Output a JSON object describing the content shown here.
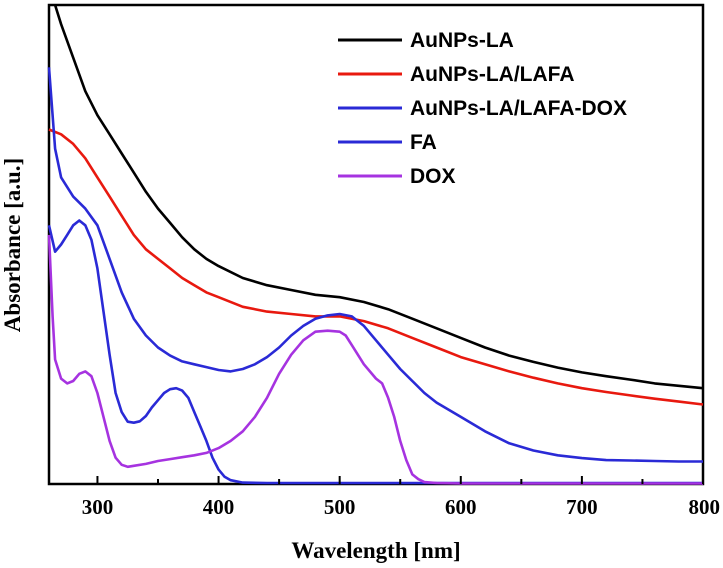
{
  "chart_data": {
    "type": "line",
    "title": "",
    "xlabel": "Wavelength [nm]",
    "ylabel": "Absorbance [a.u.]",
    "xlim": [
      260,
      800
    ],
    "ylim": [
      0,
      1
    ],
    "x_ticks": [
      300,
      400,
      500,
      600,
      700,
      800
    ],
    "y_ticks": [],
    "grid": false,
    "legend_position": "top-right",
    "series": [
      {
        "name": "AuNPs-LA",
        "color": "#000000",
        "points": [
          [
            265,
            1.0
          ],
          [
            270,
            0.96
          ],
          [
            280,
            0.89
          ],
          [
            290,
            0.82
          ],
          [
            300,
            0.77
          ],
          [
            310,
            0.73
          ],
          [
            320,
            0.69
          ],
          [
            330,
            0.65
          ],
          [
            340,
            0.61
          ],
          [
            350,
            0.575
          ],
          [
            360,
            0.545
          ],
          [
            370,
            0.515
          ],
          [
            380,
            0.49
          ],
          [
            390,
            0.47
          ],
          [
            400,
            0.455
          ],
          [
            420,
            0.43
          ],
          [
            440,
            0.415
          ],
          [
            460,
            0.405
          ],
          [
            480,
            0.395
          ],
          [
            500,
            0.39
          ],
          [
            520,
            0.38
          ],
          [
            540,
            0.365
          ],
          [
            560,
            0.345
          ],
          [
            580,
            0.325
          ],
          [
            600,
            0.305
          ],
          [
            620,
            0.285
          ],
          [
            640,
            0.268
          ],
          [
            660,
            0.255
          ],
          [
            680,
            0.243
          ],
          [
            700,
            0.233
          ],
          [
            720,
            0.225
          ],
          [
            740,
            0.218
          ],
          [
            760,
            0.21
          ],
          [
            780,
            0.205
          ],
          [
            800,
            0.2
          ]
        ]
      },
      {
        "name": "AuNPs-LA/LAFA",
        "color": "#e8190f",
        "points": [
          [
            260,
            0.74
          ],
          [
            270,
            0.73
          ],
          [
            280,
            0.71
          ],
          [
            290,
            0.68
          ],
          [
            300,
            0.64
          ],
          [
            310,
            0.6
          ],
          [
            320,
            0.56
          ],
          [
            330,
            0.52
          ],
          [
            340,
            0.49
          ],
          [
            350,
            0.47
          ],
          [
            360,
            0.45
          ],
          [
            370,
            0.43
          ],
          [
            380,
            0.415
          ],
          [
            390,
            0.4
          ],
          [
            400,
            0.39
          ],
          [
            420,
            0.37
          ],
          [
            440,
            0.36
          ],
          [
            460,
            0.355
          ],
          [
            480,
            0.35
          ],
          [
            500,
            0.35
          ],
          [
            520,
            0.34
          ],
          [
            540,
            0.325
          ],
          [
            560,
            0.305
          ],
          [
            580,
            0.285
          ],
          [
            600,
            0.265
          ],
          [
            620,
            0.25
          ],
          [
            640,
            0.235
          ],
          [
            660,
            0.222
          ],
          [
            680,
            0.21
          ],
          [
            700,
            0.2
          ],
          [
            720,
            0.192
          ],
          [
            740,
            0.185
          ],
          [
            760,
            0.178
          ],
          [
            780,
            0.172
          ],
          [
            800,
            0.166
          ]
        ]
      },
      {
        "name": "AuNPs-LA/LAFA-DOX",
        "color": "#2a2ad6",
        "points": [
          [
            260,
            0.87
          ],
          [
            265,
            0.7
          ],
          [
            270,
            0.64
          ],
          [
            280,
            0.6
          ],
          [
            290,
            0.575
          ],
          [
            300,
            0.54
          ],
          [
            310,
            0.47
          ],
          [
            320,
            0.4
          ],
          [
            330,
            0.345
          ],
          [
            340,
            0.31
          ],
          [
            350,
            0.285
          ],
          [
            360,
            0.268
          ],
          [
            370,
            0.256
          ],
          [
            380,
            0.25
          ],
          [
            390,
            0.244
          ],
          [
            400,
            0.238
          ],
          [
            410,
            0.235
          ],
          [
            420,
            0.24
          ],
          [
            430,
            0.25
          ],
          [
            440,
            0.265
          ],
          [
            450,
            0.285
          ],
          [
            460,
            0.31
          ],
          [
            470,
            0.33
          ],
          [
            480,
            0.345
          ],
          [
            490,
            0.352
          ],
          [
            500,
            0.355
          ],
          [
            510,
            0.35
          ],
          [
            520,
            0.33
          ],
          [
            530,
            0.3
          ],
          [
            540,
            0.27
          ],
          [
            550,
            0.24
          ],
          [
            560,
            0.215
          ],
          [
            570,
            0.19
          ],
          [
            580,
            0.17
          ],
          [
            590,
            0.155
          ],
          [
            600,
            0.14
          ],
          [
            620,
            0.11
          ],
          [
            640,
            0.085
          ],
          [
            660,
            0.07
          ],
          [
            680,
            0.06
          ],
          [
            700,
            0.054
          ],
          [
            720,
            0.05
          ],
          [
            740,
            0.049
          ],
          [
            760,
            0.048
          ],
          [
            780,
            0.047
          ],
          [
            800,
            0.047
          ]
        ]
      },
      {
        "name": "FA",
        "color": "#2a2ad6",
        "points": [
          [
            260,
            0.54
          ],
          [
            265,
            0.485
          ],
          [
            270,
            0.5
          ],
          [
            275,
            0.52
          ],
          [
            280,
            0.54
          ],
          [
            285,
            0.55
          ],
          [
            290,
            0.54
          ],
          [
            295,
            0.51
          ],
          [
            300,
            0.45
          ],
          [
            305,
            0.36
          ],
          [
            310,
            0.27
          ],
          [
            315,
            0.19
          ],
          [
            320,
            0.15
          ],
          [
            325,
            0.13
          ],
          [
            330,
            0.128
          ],
          [
            335,
            0.131
          ],
          [
            340,
            0.142
          ],
          [
            345,
            0.16
          ],
          [
            350,
            0.175
          ],
          [
            355,
            0.19
          ],
          [
            360,
            0.198
          ],
          [
            365,
            0.2
          ],
          [
            370,
            0.195
          ],
          [
            375,
            0.18
          ],
          [
            380,
            0.15
          ],
          [
            385,
            0.12
          ],
          [
            390,
            0.09
          ],
          [
            395,
            0.055
          ],
          [
            400,
            0.03
          ],
          [
            405,
            0.015
          ],
          [
            410,
            0.008
          ],
          [
            420,
            0.003
          ],
          [
            440,
            0.002
          ],
          [
            500,
            0.002
          ],
          [
            600,
            0.002
          ],
          [
            800,
            0.002
          ]
        ]
      },
      {
        "name": "DOX",
        "color": "#a633e0",
        "points": [
          [
            260,
            0.52
          ],
          [
            263,
            0.35
          ],
          [
            265,
            0.26
          ],
          [
            270,
            0.22
          ],
          [
            275,
            0.21
          ],
          [
            280,
            0.215
          ],
          [
            285,
            0.23
          ],
          [
            290,
            0.235
          ],
          [
            295,
            0.225
          ],
          [
            300,
            0.19
          ],
          [
            305,
            0.14
          ],
          [
            310,
            0.09
          ],
          [
            315,
            0.055
          ],
          [
            320,
            0.04
          ],
          [
            325,
            0.036
          ],
          [
            330,
            0.038
          ],
          [
            340,
            0.042
          ],
          [
            350,
            0.048
          ],
          [
            360,
            0.052
          ],
          [
            370,
            0.056
          ],
          [
            380,
            0.06
          ],
          [
            390,
            0.065
          ],
          [
            400,
            0.075
          ],
          [
            410,
            0.09
          ],
          [
            420,
            0.11
          ],
          [
            430,
            0.14
          ],
          [
            440,
            0.18
          ],
          [
            450,
            0.23
          ],
          [
            460,
            0.27
          ],
          [
            470,
            0.3
          ],
          [
            480,
            0.318
          ],
          [
            490,
            0.32
          ],
          [
            500,
            0.318
          ],
          [
            505,
            0.31
          ],
          [
            510,
            0.29
          ],
          [
            520,
            0.25
          ],
          [
            530,
            0.22
          ],
          [
            535,
            0.21
          ],
          [
            540,
            0.18
          ],
          [
            545,
            0.14
          ],
          [
            550,
            0.09
          ],
          [
            555,
            0.05
          ],
          [
            560,
            0.02
          ],
          [
            565,
            0.01
          ],
          [
            570,
            0.004
          ],
          [
            580,
            0.002
          ],
          [
            600,
            0.001
          ],
          [
            700,
            0.001
          ],
          [
            800,
            0.001
          ]
        ]
      }
    ]
  }
}
